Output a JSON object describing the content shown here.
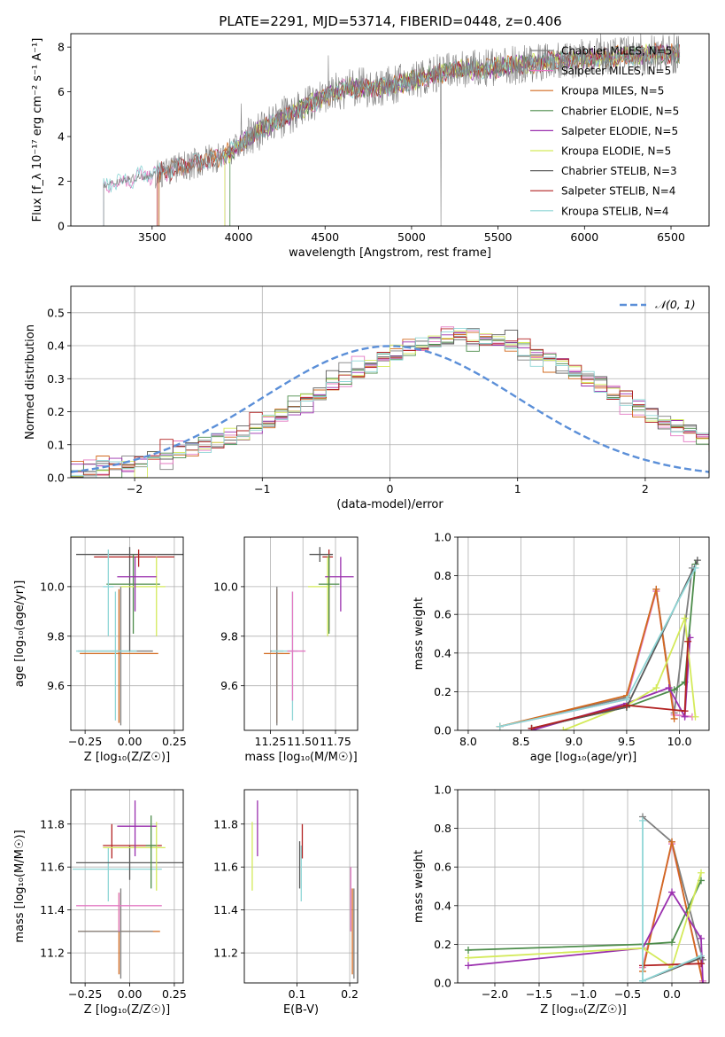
{
  "figure": {
    "title": "PLATE=2291, MJD=53714, FIBERID=0448, z=0.406"
  },
  "series_colors": {
    "Chabrier MILES": "#7f7f7f",
    "Salpeter MILES": "#e377c2",
    "Kroupa MILES": "#d2691e",
    "Chabrier ELODIE": "#4c8c4a",
    "Salpeter ELODIE": "#9a2fae",
    "Kroupa ELODIE": "#d4ea5a",
    "Chabrier STELIB": "#5a5a5a",
    "Salpeter STELIB": "#b22222",
    "Kroupa STELIB": "#8fd6d6"
  },
  "chart_data": [
    {
      "id": "spectrum",
      "type": "line",
      "xlabel": "wavelength [Angstrom, rest frame]",
      "ylabel": "Flux [f_λ 10⁻¹⁷ erg cm⁻² s⁻¹ A⁻¹]",
      "xlim": [
        3030,
        6720
      ],
      "ylim": [
        0,
        8.6
      ],
      "xticks": [
        3500,
        4000,
        4500,
        5000,
        5500,
        6000,
        6500
      ],
      "yticks": [
        0,
        2,
        4,
        6,
        8
      ],
      "grid": false,
      "legend_position": "right",
      "legend": [
        "Chabrier MILES, N_SSP=5",
        "Salpeter MILES, N_SSP=5",
        "Kroupa MILES, N_SSP=5",
        "Chabrier ELODIE, N_SSP=5",
        "Salpeter ELODIE, N_SSP=5",
        "Kroupa ELODIE, N_SSP=5",
        "Chabrier STELIB, N_SSP=3",
        "Salpeter STELIB, N_SSP=4",
        "Kroupa STELIB, N_SSP=4"
      ],
      "data_trend": {
        "x": [
          3220,
          3300,
          3400,
          3500,
          3600,
          3700,
          3800,
          3900,
          4000,
          4100,
          4200,
          4300,
          4400,
          4500,
          4600,
          4700,
          4800,
          4900,
          5000,
          5100,
          5200,
          5300,
          5400,
          5500,
          5600,
          5700,
          5800,
          5900,
          6000,
          6100,
          6200,
          6300,
          6400,
          6550
        ],
        "y": [
          1.75,
          2.0,
          2.15,
          2.3,
          2.5,
          2.7,
          2.9,
          3.1,
          3.6,
          4.2,
          4.6,
          5.0,
          5.4,
          5.8,
          6.1,
          6.2,
          6.2,
          6.3,
          6.5,
          6.7,
          6.9,
          7.0,
          7.0,
          7.1,
          7.2,
          7.3,
          7.4,
          7.4,
          7.5,
          7.5,
          7.6,
          7.6,
          7.7,
          7.7
        ]
      },
      "model_starts": {
        "Chabrier STELIB": 3220,
        "Salpeter STELIB": 3530,
        "Kroupa MILES": 3540,
        "Chabrier MILES": 3540,
        "Kroupa ELODIE": 3920,
        "Salpeter ELODIE": 3920,
        "Chabrier ELODIE": 3950
      }
    },
    {
      "id": "residual_histogram",
      "type": "line",
      "xlabel": "(data-model)/error",
      "ylabel": "Normed distribution",
      "xlim": [
        -2.5,
        2.5
      ],
      "ylim": [
        0,
        0.58
      ],
      "xticks": [
        -2,
        -1,
        0,
        1,
        2
      ],
      "yticks": [
        0.0,
        0.1,
        0.2,
        0.3,
        0.4,
        0.5
      ],
      "grid": true,
      "legend": [
        "𝒩(0, 1)"
      ],
      "legend_position": "top-right",
      "bin_width": 0.1,
      "reference_curve": "standard normal density",
      "envelope": [
        0.025,
        0.028,
        0.031,
        0.036,
        0.042,
        0.05,
        0.058,
        0.067,
        0.077,
        0.087,
        0.098,
        0.11,
        0.122,
        0.135,
        0.15,
        0.17,
        0.19,
        0.215,
        0.24,
        0.26,
        0.28,
        0.3,
        0.32,
        0.34,
        0.36,
        0.38,
        0.395,
        0.41,
        0.42,
        0.43,
        0.43,
        0.43,
        0.425,
        0.415,
        0.405,
        0.39,
        0.375,
        0.36,
        0.34,
        0.32,
        0.3,
        0.28,
        0.26,
        0.24,
        0.215,
        0.19,
        0.17,
        0.15,
        0.132,
        0.117,
        0.103,
        0.09,
        0.08,
        0.07,
        0.062,
        0.055,
        0.048,
        0.042,
        0.037,
        0.033,
        0.029
      ]
    },
    {
      "id": "age_vs_Z",
      "type": "scatter",
      "xlabel": "Z [log₁₀(Z/Z☉)]",
      "ylabel": "age  [log₁₀(age/yr)]",
      "xlim": [
        -0.33,
        0.3
      ],
      "ylim": [
        9.42,
        10.2
      ],
      "xticks": [
        -0.25,
        0.0,
        0.25
      ],
      "yticks": [
        9.6,
        9.8,
        10.0
      ],
      "grid": true,
      "points": [
        {
          "series": "Kroupa MILES",
          "x": -0.06,
          "y": 9.73,
          "xerr": [
            0.22,
            0.22
          ],
          "yerr": [
            0.28,
            0.26
          ]
        },
        {
          "series": "Chabrier MILES",
          "x": -0.05,
          "y": 9.74,
          "xerr": [
            0.24,
            0.18
          ],
          "yerr": [
            0.3,
            0.26
          ]
        },
        {
          "series": "Kroupa STELIB",
          "x": -0.08,
          "y": 9.74,
          "xerr": [
            0.22,
            0.12
          ],
          "yerr": [
            0.28,
            0.24
          ]
        },
        {
          "series": "Chabrier STELIB",
          "x": 0.0,
          "y": 10.13,
          "xerr": [
            0.3,
            0.3
          ],
          "yerr": [
            0.39,
            0.03
          ]
        },
        {
          "series": "Salpeter STELIB",
          "x": 0.05,
          "y": 10.12,
          "xerr": [
            0.25,
            0.2
          ],
          "yerr": [
            0.04,
            0.03
          ]
        },
        {
          "series": "Chabrier ELODIE",
          "x": 0.02,
          "y": 10.01,
          "xerr": [
            0.15,
            0.15
          ],
          "yerr": [
            0.2,
            0.12
          ]
        },
        {
          "series": "Kroupa ELODIE",
          "x": 0.15,
          "y": 10.0,
          "xerr": [
            0.2,
            0.05
          ],
          "yerr": [
            0.2,
            0.12
          ]
        },
        {
          "series": "Salpeter ELODIE",
          "x": 0.03,
          "y": 10.04,
          "xerr": [
            0.1,
            0.12
          ],
          "yerr": [
            0.14,
            0.08
          ]
        },
        {
          "series": "Kroupa STELIB",
          "x": -0.12,
          "y": 10.0,
          "xerr": [
            0.03,
            0.03
          ],
          "yerr": [
            0.2,
            0.15
          ]
        }
      ]
    },
    {
      "id": "age_vs_mass",
      "type": "scatter",
      "xlabel": "mass [log₁₀(M/M☉)]",
      "ylabel": "",
      "xlim": [
        11.05,
        11.92
      ],
      "ylim": [
        9.42,
        10.2
      ],
      "xticks": [
        11.25,
        11.5,
        11.75
      ],
      "yticks": [
        9.6,
        9.8,
        10.0
      ],
      "grid": true,
      "points": [
        {
          "series": "Kroupa MILES",
          "x": 11.3,
          "y": 9.73,
          "xerr": [
            0.1,
            0.1
          ],
          "yerr": [
            0.28,
            0.26
          ]
        },
        {
          "series": "Chabrier MILES",
          "x": 11.3,
          "y": 9.74,
          "xerr": [
            0.05,
            0.05
          ],
          "yerr": [
            0.3,
            0.26
          ]
        },
        {
          "series": "Kroupa STELIB",
          "x": 11.42,
          "y": 9.74,
          "xerr": [
            0.16,
            0.04
          ],
          "yerr": [
            0.28,
            0.24
          ]
        },
        {
          "series": "Salpeter MILES",
          "x": 11.42,
          "y": 9.74,
          "xerr": [
            0.04,
            0.1
          ],
          "yerr": [
            0.2,
            0.24
          ]
        },
        {
          "series": "Chabrier STELIB",
          "x": 11.63,
          "y": 10.13,
          "xerr": [
            0.08,
            0.1
          ],
          "yerr": [
            0.03,
            0.03
          ]
        },
        {
          "series": "Salpeter STELIB",
          "x": 11.7,
          "y": 10.12,
          "xerr": [
            0.05,
            0.03
          ],
          "yerr": [
            0.3,
            0.03
          ]
        },
        {
          "series": "Kroupa ELODIE",
          "x": 11.69,
          "y": 10.0,
          "xerr": [
            0.15,
            0.03
          ],
          "yerr": [
            0.2,
            0.12
          ]
        },
        {
          "series": "Salpeter ELODIE",
          "x": 11.79,
          "y": 10.04,
          "xerr": [
            0.12,
            0.1
          ],
          "yerr": [
            0.14,
            0.08
          ]
        },
        {
          "series": "Chabrier ELODIE",
          "x": 11.7,
          "y": 10.01,
          "xerr": [
            0.08,
            0.08
          ],
          "yerr": [
            0.2,
            0.12
          ]
        }
      ]
    },
    {
      "id": "weight_vs_age",
      "type": "line",
      "xlabel": "age  [log₁₀(age/yr)]",
      "ylabel": "mass weight",
      "xlim": [
        7.9,
        10.28
      ],
      "ylim": [
        0.0,
        1.0
      ],
      "xticks": [
        8.0,
        8.5,
        9.0,
        9.5,
        10.0
      ],
      "yticks": [
        0.0,
        0.2,
        0.4,
        0.6,
        0.8,
        1.0
      ],
      "grid": true,
      "series": [
        {
          "name": "Chabrier MILES",
          "x": [
            8.3,
            9.5,
            9.78,
            9.95,
            10.12
          ],
          "y": [
            0.02,
            0.17,
            0.73,
            0.09,
            0.84
          ]
        },
        {
          "name": "Salpeter MILES",
          "x": [
            8.3,
            9.5,
            9.78,
            9.95,
            10.12
          ],
          "y": [
            0.02,
            0.16,
            0.72,
            0.08,
            0.07
          ]
        },
        {
          "name": "Kroupa MILES",
          "x": [
            8.3,
            9.5,
            9.78,
            9.95
          ],
          "y": [
            0.02,
            0.18,
            0.73,
            0.06
          ]
        },
        {
          "name": "Chabrier ELODIE",
          "x": [
            8.6,
            9.5,
            9.95,
            10.05,
            10.15
          ],
          "y": [
            0.01,
            0.12,
            0.21,
            0.25,
            0.86
          ]
        },
        {
          "name": "Salpeter ELODIE",
          "x": [
            8.6,
            9.5,
            9.9,
            10.05,
            10.1
          ],
          "y": [
            0.0,
            0.14,
            0.22,
            0.07,
            0.48
          ]
        },
        {
          "name": "Kroupa ELODIE",
          "x": [
            8.9,
            9.5,
            9.78,
            10.05,
            10.15
          ],
          "y": [
            0.0,
            0.13,
            0.22,
            0.58,
            0.07
          ]
        },
        {
          "name": "Chabrier STELIB",
          "x": [
            8.6,
            9.5,
            10.17
          ],
          "y": [
            0.01,
            0.12,
            0.88
          ]
        },
        {
          "name": "Salpeter STELIB",
          "x": [
            8.6,
            9.5,
            10.05,
            10.08
          ],
          "y": [
            0.01,
            0.13,
            0.1,
            0.46
          ]
        },
        {
          "name": "Kroupa STELIB",
          "x": [
            8.3,
            9.5,
            10.15
          ],
          "y": [
            0.02,
            0.16,
            0.84
          ]
        }
      ]
    },
    {
      "id": "mass_vs_Z",
      "type": "scatter",
      "xlabel": "Z [log₁₀(Z/Z☉)]",
      "ylabel": "mass [log₁₀(M/M☉)]",
      "xlim": [
        -0.33,
        0.3
      ],
      "ylim": [
        11.06,
        11.96
      ],
      "xticks": [
        -0.25,
        0.0,
        0.25
      ],
      "yticks": [
        11.2,
        11.4,
        11.6,
        11.8
      ],
      "grid": true,
      "points": [
        {
          "series": "Kroupa MILES",
          "x": -0.06,
          "y": 11.3,
          "xerr": [
            0.23,
            0.23
          ],
          "yerr": [
            0.2,
            0.18
          ]
        },
        {
          "series": "Chabrier MILES",
          "x": -0.05,
          "y": 11.3,
          "xerr": [
            0.24,
            0.18
          ],
          "yerr": [
            0.22,
            0.2
          ]
        },
        {
          "series": "Salpeter MILES",
          "x": -0.06,
          "y": 11.42,
          "xerr": [
            0.24,
            0.24
          ],
          "yerr": [
            0.12,
            0.06
          ]
        },
        {
          "series": "Kroupa STELIB",
          "x": -0.12,
          "y": 11.59,
          "xerr": [
            0.2,
            0.3
          ],
          "yerr": [
            0.15,
            0.1
          ]
        },
        {
          "series": "Chabrier STELIB",
          "x": 0.0,
          "y": 11.62,
          "xerr": [
            0.3,
            0.3
          ],
          "yerr": [
            0.08,
            0.08
          ]
        },
        {
          "series": "Salpeter STELIB",
          "x": -0.1,
          "y": 11.7,
          "xerr": [
            0.05,
            0.28
          ],
          "yerr": [
            0.06,
            0.1
          ]
        },
        {
          "series": "Kroupa ELODIE",
          "x": 0.15,
          "y": 11.69,
          "xerr": [
            0.3,
            0.05
          ],
          "yerr": [
            0.2,
            0.12
          ]
        },
        {
          "series": "Salpeter ELODIE",
          "x": 0.03,
          "y": 11.79,
          "xerr": [
            0.1,
            0.12
          ],
          "yerr": [
            0.14,
            0.12
          ]
        },
        {
          "series": "Chabrier ELODIE",
          "x": 0.12,
          "y": 11.7,
          "xerr": [
            0.03,
            0.03
          ],
          "yerr": [
            0.2,
            0.14
          ]
        }
      ]
    },
    {
      "id": "mass_vs_ebv",
      "type": "scatter",
      "xlabel": "E(B-V)",
      "ylabel": "",
      "xlim": [
        0.0,
        0.215
      ],
      "ylim": [
        11.06,
        11.96
      ],
      "xticks": [
        0.1,
        0.2
      ],
      "yticks": [
        11.2,
        11.4,
        11.6,
        11.8
      ],
      "grid": true,
      "points": [
        {
          "series": "Kroupa ELODIE",
          "x": 0.015,
          "y": 11.69,
          "xerr": [
            0,
            0
          ],
          "yerr": [
            0.2,
            0.12
          ]
        },
        {
          "series": "Salpeter ELODIE",
          "x": 0.025,
          "y": 11.79,
          "xerr": [
            0,
            0
          ],
          "yerr": [
            0.14,
            0.12
          ]
        },
        {
          "series": "Chabrier STELIB",
          "x": 0.105,
          "y": 11.6,
          "xerr": [
            0,
            0
          ],
          "yerr": [
            0.1,
            0.12
          ]
        },
        {
          "series": "Kroupa STELIB",
          "x": 0.108,
          "y": 11.6,
          "xerr": [
            0,
            0
          ],
          "yerr": [
            0.16,
            0.1
          ]
        },
        {
          "series": "Salpeter STELIB",
          "x": 0.11,
          "y": 11.7,
          "xerr": [
            0,
            0
          ],
          "yerr": [
            0.06,
            0.1
          ]
        },
        {
          "series": "Salpeter MILES",
          "x": 0.202,
          "y": 11.42,
          "xerr": [
            0,
            0
          ],
          "yerr": [
            0.12,
            0.18
          ]
        },
        {
          "series": "Kroupa MILES",
          "x": 0.205,
          "y": 11.3,
          "xerr": [
            0,
            0
          ],
          "yerr": [
            0.2,
            0.2
          ]
        },
        {
          "series": "Chabrier MILES",
          "x": 0.208,
          "y": 11.3,
          "xerr": [
            0,
            0
          ],
          "yerr": [
            0.22,
            0.2
          ]
        }
      ]
    },
    {
      "id": "weight_vs_Z",
      "type": "line",
      "xlabel": "Z [log₁₀(Z/Z☉)]",
      "ylabel": "mass weight",
      "xlim": [
        -2.42,
        0.42
      ],
      "ylim": [
        0.0,
        1.0
      ],
      "xticks": [
        -2.0,
        -1.5,
        -1.0,
        -0.5,
        0.0
      ],
      "yticks": [
        0.0,
        0.2,
        0.4,
        0.6,
        0.8,
        1.0
      ],
      "grid": true,
      "series": [
        {
          "name": "Chabrier MILES",
          "x": [
            -0.33,
            0.0,
            0.35
          ],
          "y": [
            0.86,
            0.73,
            0.12
          ]
        },
        {
          "name": "Salpeter MILES",
          "x": [
            -0.33,
            0.0,
            0.35
          ],
          "y": [
            0.08,
            0.72,
            0.01
          ]
        },
        {
          "name": "Kroupa MILES",
          "x": [
            -0.33,
            0.0,
            0.35
          ],
          "y": [
            0.06,
            0.73,
            0.0
          ]
        },
        {
          "name": "Chabrier ELODIE",
          "x": [
            -2.3,
            -0.33,
            0.0,
            0.33
          ],
          "y": [
            0.17,
            0.2,
            0.21,
            0.53
          ]
        },
        {
          "name": "Salpeter ELODIE",
          "x": [
            -2.3,
            -0.33,
            0.0,
            0.33,
            0.35
          ],
          "y": [
            0.09,
            0.18,
            0.47,
            0.23,
            0.0
          ]
        },
        {
          "name": "Kroupa ELODIE",
          "x": [
            -2.3,
            -0.33,
            0.0,
            0.33
          ],
          "y": [
            0.13,
            0.18,
            0.08,
            0.57
          ]
        },
        {
          "name": "Chabrier STELIB",
          "x": [
            -0.33,
            0.33
          ],
          "y": [
            0.01,
            0.13
          ]
        },
        {
          "name": "Salpeter STELIB",
          "x": [
            -0.33,
            0.33
          ],
          "y": [
            0.09,
            0.1
          ]
        },
        {
          "name": "Kroupa STELIB",
          "x": [
            -0.33,
            -0.33,
            0.33
          ],
          "y": [
            0.84,
            0.01,
            0.14
          ]
        }
      ]
    }
  ]
}
